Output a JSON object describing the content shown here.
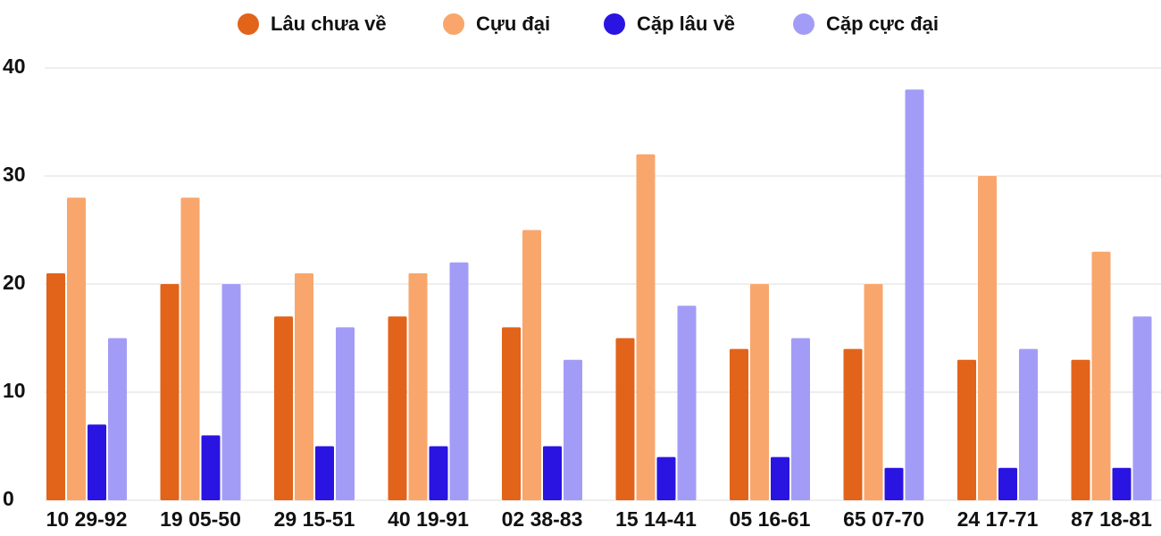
{
  "chart_data": {
    "type": "bar",
    "categories": [
      "10 29-92",
      "19 05-50",
      "29 15-51",
      "40 19-91",
      "02 38-83",
      "15 14-41",
      "05 16-61",
      "65 07-70",
      "24 17-71",
      "87 18-81"
    ],
    "series": [
      {
        "name": "Lâu chưa về",
        "color": "#e2631a",
        "values": [
          21,
          20,
          17,
          17,
          16,
          15,
          14,
          14,
          13,
          13
        ]
      },
      {
        "name": "Cựu đại",
        "color": "#f9a66c",
        "values": [
          28,
          28,
          21,
          21,
          25,
          32,
          20,
          20,
          30,
          23
        ]
      },
      {
        "name": "Cặp lâu về",
        "color": "#2a14e2",
        "values": [
          7,
          6,
          5,
          5,
          5,
          4,
          4,
          3,
          3,
          3
        ]
      },
      {
        "name": "Cặp cực đại",
        "color": "#a39cf7",
        "values": [
          15,
          20,
          16,
          22,
          13,
          18,
          15,
          38,
          14,
          17
        ]
      }
    ],
    "ylim": [
      0,
      40
    ],
    "yticks": [
      0,
      10,
      20,
      30,
      40
    ],
    "grid": true,
    "legend": "top"
  }
}
